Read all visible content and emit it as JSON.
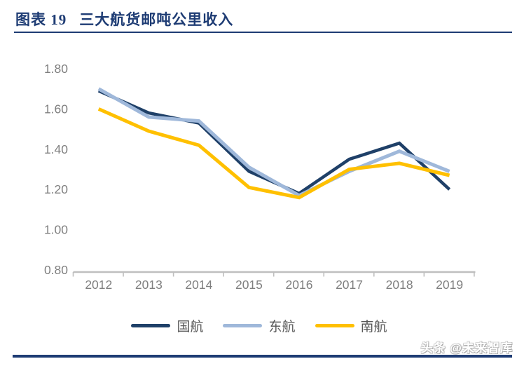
{
  "header": {
    "figure_label": "图表 19",
    "figure_title": "三大航货邮吨公里收入"
  },
  "watermark": {
    "text": "头条 @未来智库"
  },
  "colors": {
    "accent_navy": "#1e3c74",
    "axis_line": "#bfbfbf",
    "tick_label": "#7f7f7f",
    "legend_text": "#595959"
  },
  "chart_data": {
    "type": "line",
    "title": "三大航货邮吨公里收入",
    "xlabel": "",
    "ylabel": "",
    "categories": [
      "2012",
      "2013",
      "2014",
      "2015",
      "2016",
      "2017",
      "2018",
      "2019"
    ],
    "series": [
      {
        "name": "国航",
        "color": "#1f4068",
        "stroke_width": 4.5,
        "values": [
          1.69,
          1.58,
          1.53,
          1.29,
          1.18,
          1.35,
          1.43,
          1.2
        ]
      },
      {
        "name": "东航",
        "color": "#9fb8da",
        "stroke_width": 5,
        "values": [
          1.7,
          1.56,
          1.54,
          1.31,
          1.17,
          1.29,
          1.39,
          1.29
        ]
      },
      {
        "name": "南航",
        "color": "#ffc000",
        "stroke_width": 5,
        "values": [
          1.6,
          1.49,
          1.42,
          1.21,
          1.16,
          1.3,
          1.33,
          1.27
        ]
      }
    ],
    "ylim": [
      0.8,
      1.8
    ],
    "ytick_step": 0.2,
    "ytick_labels": [
      "1.80",
      "1.60",
      "1.40",
      "1.20",
      "1.00",
      "0.80"
    ],
    "grid": false,
    "legend_position": "bottom"
  }
}
